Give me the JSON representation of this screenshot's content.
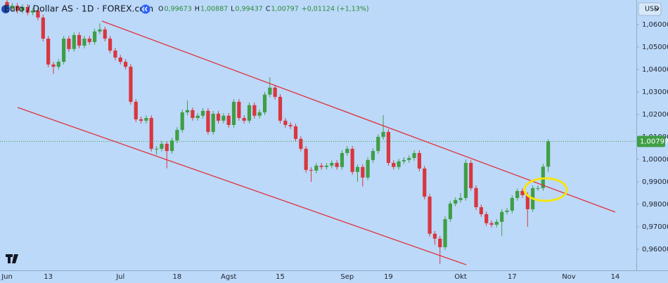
{
  "chart_data": {
    "type": "candlestick",
    "title": "Euro / Dollar AS · 1D · FOREX.com",
    "ohlc_legend": [
      {
        "label": "O",
        "value": "0,99673"
      },
      {
        "label": "H",
        "value": "1,00887"
      },
      {
        "label": "L",
        "value": "0,99437"
      },
      {
        "label": "C",
        "value": "1,00797"
      }
    ],
    "change": "+0,01124 (+1,13%)",
    "currency": "USD",
    "last_price_label": "1,00797",
    "up_color": "#3f9e45",
    "down_color": "#d9363e",
    "grid": false,
    "ylim": [
      0.9506,
      1.0709
    ],
    "yticks": [
      {
        "value": 0.96,
        "label": "0,96000"
      },
      {
        "value": 0.97,
        "label": "0,97000"
      },
      {
        "value": 0.98,
        "label": "0,98000"
      },
      {
        "value": 0.99,
        "label": "0,99000"
      },
      {
        "value": 1.0,
        "label": "1,00000"
      },
      {
        "value": 1.01,
        "label": "1,01000"
      },
      {
        "value": 1.02,
        "label": "1,02000"
      },
      {
        "value": 1.03,
        "label": "1,03000"
      },
      {
        "value": 1.04,
        "label": "1,04000"
      },
      {
        "value": 1.05,
        "label": "1,05000"
      },
      {
        "value": 1.06,
        "label": "1,06000"
      }
    ],
    "categories": [
      "Jun",
      null,
      null,
      null,
      null,
      null,
      null,
      null,
      "13",
      null,
      null,
      null,
      null,
      null,
      null,
      null,
      null,
      null,
      null,
      null,
      null,
      null,
      "Jul",
      null,
      null,
      null,
      null,
      null,
      null,
      null,
      null,
      null,
      null,
      "18",
      null,
      null,
      null,
      null,
      null,
      null,
      null,
      null,
      null,
      "Agst",
      null,
      null,
      null,
      null,
      null,
      null,
      null,
      null,
      null,
      "15",
      null,
      null,
      null,
      null,
      null,
      null,
      null,
      null,
      null,
      null,
      null,
      null,
      "Sep",
      null,
      null,
      null,
      null,
      null,
      null,
      null,
      "19",
      null,
      null,
      null,
      null,
      null,
      null,
      null,
      null,
      null,
      null,
      null,
      null,
      null,
      "Okt",
      null,
      null,
      null,
      null,
      null,
      null,
      null,
      null,
      null,
      "17",
      null,
      null,
      null,
      null,
      null,
      null,
      null,
      null,
      null,
      null,
      "Nov",
      null,
      null,
      null,
      null,
      null,
      null,
      null,
      null,
      "14",
      null,
      null,
      null
    ],
    "open": [
      1.07,
      1.0672,
      1.0684,
      1.0662,
      1.0678,
      1.0653,
      1.0662,
      1.0631,
      1.0537,
      1.0422,
      1.0412,
      1.0434,
      1.0537,
      1.0491,
      1.0553,
      1.0506,
      1.0537,
      1.0522,
      1.0569,
      1.0578,
      1.0537,
      1.0484,
      1.0453,
      1.0434,
      1.0412,
      1.0256,
      1.0178,
      1.0172,
      1.0184,
      1.0047,
      1.0047,
      1.0069,
      1.0037,
      1.0084,
      1.0131,
      1.0209,
      1.0219,
      1.0184,
      1.0194,
      1.0216,
      1.0122,
      1.0203,
      1.0172,
      1.0194,
      1.0153,
      1.0256,
      1.0184,
      1.0172,
      1.0241,
      1.0194,
      1.0209,
      1.0288,
      1.0319,
      1.0278,
      1.0172,
      1.0153,
      1.0147,
      1.0091,
      1.0047,
      0.9953,
      0.995,
      0.9972,
      0.9966,
      0.9972,
      0.9984,
      0.9966,
      1.0028,
      1.0047,
      0.9944,
      0.9966,
      0.9919,
      0.9997,
      1.0037,
      1.01,
      1.0122,
      0.9984,
      0.9966,
      0.9991,
      0.9997,
      1.0006,
      1.0028,
      0.9959,
      0.9834,
      0.9669,
      0.9647,
      0.9609,
      0.9734,
      0.9803,
      0.9819,
      0.9828,
      0.9984,
      0.9872,
      0.9787,
      0.9756,
      0.9716,
      0.9709,
      0.9722,
      0.9766,
      0.9772,
      0.9828,
      0.9859,
      0.9841,
      0.9778,
      0.9872,
      0.9872,
      0.99673,
      null,
      null,
      null,
      null,
      null,
      null,
      null,
      null,
      null,
      null,
      null,
      null,
      null,
      null,
      null,
      null
    ],
    "high": [
      1.0712,
      1.0696,
      1.0696,
      1.069,
      1.069,
      1.0674,
      1.0674,
      1.0643,
      1.0549,
      1.0434,
      1.0446,
      1.0549,
      1.0549,
      1.0565,
      1.0565,
      1.0549,
      1.0549,
      1.0581,
      1.0605,
      1.059,
      1.0549,
      1.0496,
      1.0465,
      1.0446,
      1.0424,
      1.0268,
      1.019,
      1.0196,
      1.0196,
      1.0059,
      1.0081,
      1.0081,
      1.0096,
      1.0143,
      1.0221,
      1.0262,
      1.0231,
      1.0206,
      1.0228,
      1.0228,
      1.0215,
      1.0215,
      1.0206,
      1.0206,
      1.0268,
      1.0268,
      1.0196,
      1.0253,
      1.0253,
      1.0221,
      1.03,
      1.0365,
      1.0331,
      1.029,
      1.0184,
      1.0165,
      1.0159,
      1.0103,
      1.0059,
      0.9965,
      0.9984,
      0.9984,
      0.9984,
      0.9996,
      0.9996,
      1.004,
      1.0059,
      1.0059,
      0.9978,
      0.9978,
      1.0009,
      1.0049,
      1.0112,
      1.0197,
      1.0134,
      0.9996,
      1.0003,
      1.0009,
      1.0018,
      1.004,
      1.004,
      0.9971,
      0.9846,
      0.9681,
      0.9659,
      0.9746,
      0.9815,
      0.9831,
      0.985,
      0.9999,
      0.9996,
      0.9884,
      0.9799,
      0.9768,
      0.9728,
      0.9734,
      0.9778,
      0.9784,
      0.984,
      0.9871,
      0.9871,
      0.9853,
      0.9884,
      0.9884,
      0.998,
      1.00887,
      null,
      null,
      null,
      null,
      null,
      null,
      null,
      null,
      null,
      null,
      null,
      null,
      null,
      null,
      null,
      null
    ],
    "low": [
      1.066,
      1.066,
      1.065,
      1.065,
      1.0641,
      1.0641,
      1.0619,
      1.0525,
      1.041,
      1.038,
      1.04,
      1.0422,
      1.0479,
      1.0479,
      1.0494,
      1.0494,
      1.051,
      1.051,
      1.0557,
      1.0525,
      1.0472,
      1.0441,
      1.0422,
      1.04,
      1.0244,
      1.0166,
      1.016,
      1.016,
      1.0035,
      1.002,
      1.0035,
      0.996,
      1.0025,
      1.0072,
      1.0119,
      1.0197,
      1.0172,
      1.0172,
      1.0182,
      1.011,
      1.011,
      1.016,
      1.016,
      1.0141,
      1.0141,
      1.0172,
      1.016,
      1.016,
      1.0182,
      1.0182,
      1.0197,
      1.0276,
      1.0266,
      1.016,
      1.0141,
      1.0135,
      1.0079,
      1.0035,
      0.9941,
      0.99,
      0.9938,
      0.9954,
      0.9954,
      0.996,
      0.9954,
      0.9954,
      1.0016,
      0.9932,
      0.99,
      0.988,
      0.9907,
      0.9985,
      1.0025,
      1.0088,
      0.9972,
      0.9954,
      0.9954,
      0.9979,
      0.9985,
      0.9994,
      0.9947,
      0.9822,
      0.9657,
      0.962,
      0.9535,
      0.9597,
      0.9722,
      0.9791,
      0.9807,
      0.9816,
      0.986,
      0.9775,
      0.9744,
      0.9704,
      0.9697,
      0.9697,
      0.966,
      0.9754,
      0.976,
      0.9816,
      0.9829,
      0.97,
      0.9766,
      0.986,
      0.986,
      0.99437,
      null,
      null,
      null,
      null,
      null,
      null,
      null,
      null,
      null,
      null,
      null,
      null,
      null,
      null,
      null,
      null
    ],
    "close": [
      1.0672,
      1.0684,
      1.0662,
      1.0678,
      1.0653,
      1.0662,
      1.0631,
      1.0537,
      1.0422,
      1.0412,
      1.0434,
      1.0537,
      1.0491,
      1.0553,
      1.0506,
      1.0537,
      1.0522,
      1.0569,
      1.0578,
      1.0537,
      1.0484,
      1.0453,
      1.0434,
      1.0412,
      1.0256,
      1.0178,
      1.0172,
      1.0184,
      1.0047,
      1.0047,
      1.0069,
      1.0037,
      1.0084,
      1.0131,
      1.0209,
      1.0219,
      1.0184,
      1.0194,
      1.0216,
      1.0122,
      1.0203,
      1.0172,
      1.0194,
      1.0153,
      1.0256,
      1.0184,
      1.0172,
      1.0241,
      1.0194,
      1.0209,
      1.0288,
      1.0319,
      1.0278,
      1.0172,
      1.0153,
      1.0147,
      1.0091,
      1.0047,
      0.9953,
      0.995,
      0.9972,
      0.9966,
      0.9972,
      0.9984,
      0.9966,
      1.0028,
      1.0047,
      0.9944,
      0.9966,
      0.9919,
      0.9997,
      1.0037,
      1.01,
      1.0122,
      0.9984,
      0.9966,
      0.9991,
      0.9997,
      1.0006,
      1.0028,
      0.9959,
      0.9834,
      0.9669,
      0.9647,
      0.9609,
      0.9734,
      0.9803,
      0.9819,
      0.9828,
      0.9984,
      0.9872,
      0.9787,
      0.9756,
      0.9716,
      0.9709,
      0.9722,
      0.9766,
      0.9772,
      0.9828,
      0.9859,
      0.9841,
      0.9778,
      0.9872,
      0.9872,
      0.99673,
      1.00797,
      null,
      null,
      null,
      null,
      null,
      null,
      null,
      null,
      null,
      null,
      null,
      null,
      null,
      null,
      null,
      null
    ]
  }
}
